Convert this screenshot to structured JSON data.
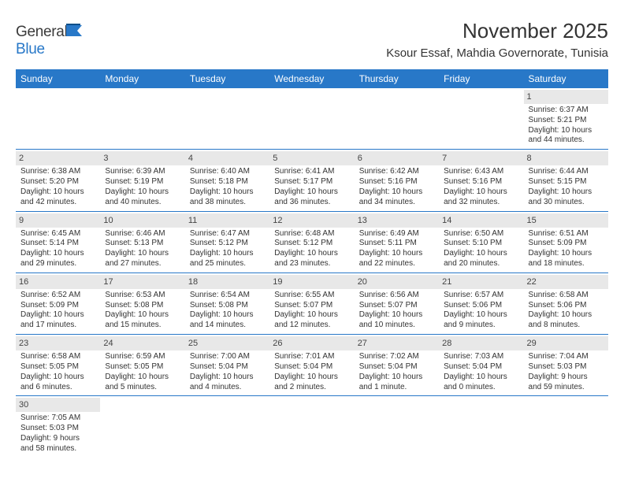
{
  "logo": {
    "part1": "General",
    "part2": "Blue"
  },
  "title": "November 2025",
  "location": "Ksour Essaf, Mahdia Governorate, Tunisia",
  "weekdays": [
    "Sunday",
    "Monday",
    "Tuesday",
    "Wednesday",
    "Thursday",
    "Friday",
    "Saturday"
  ],
  "header_bg": "#2878c8",
  "header_fg": "#ffffff",
  "daynum_bg": "#e8e8e8",
  "divider_color": "#2878c8",
  "logo_accent": "#2878c8",
  "cells": [
    [
      {
        "n": "",
        "l": [
          "",
          "",
          "",
          ""
        ],
        "empty": true
      },
      {
        "n": "",
        "l": [
          "",
          "",
          "",
          ""
        ],
        "empty": true
      },
      {
        "n": "",
        "l": [
          "",
          "",
          "",
          ""
        ],
        "empty": true
      },
      {
        "n": "",
        "l": [
          "",
          "",
          "",
          ""
        ],
        "empty": true
      },
      {
        "n": "",
        "l": [
          "",
          "",
          "",
          ""
        ],
        "empty": true
      },
      {
        "n": "",
        "l": [
          "",
          "",
          "",
          ""
        ],
        "empty": true
      },
      {
        "n": "1",
        "l": [
          "Sunrise: 6:37 AM",
          "Sunset: 5:21 PM",
          "Daylight: 10 hours",
          "and 44 minutes."
        ]
      }
    ],
    [
      {
        "n": "2",
        "l": [
          "Sunrise: 6:38 AM",
          "Sunset: 5:20 PM",
          "Daylight: 10 hours",
          "and 42 minutes."
        ]
      },
      {
        "n": "3",
        "l": [
          "Sunrise: 6:39 AM",
          "Sunset: 5:19 PM",
          "Daylight: 10 hours",
          "and 40 minutes."
        ]
      },
      {
        "n": "4",
        "l": [
          "Sunrise: 6:40 AM",
          "Sunset: 5:18 PM",
          "Daylight: 10 hours",
          "and 38 minutes."
        ]
      },
      {
        "n": "5",
        "l": [
          "Sunrise: 6:41 AM",
          "Sunset: 5:17 PM",
          "Daylight: 10 hours",
          "and 36 minutes."
        ]
      },
      {
        "n": "6",
        "l": [
          "Sunrise: 6:42 AM",
          "Sunset: 5:16 PM",
          "Daylight: 10 hours",
          "and 34 minutes."
        ]
      },
      {
        "n": "7",
        "l": [
          "Sunrise: 6:43 AM",
          "Sunset: 5:16 PM",
          "Daylight: 10 hours",
          "and 32 minutes."
        ]
      },
      {
        "n": "8",
        "l": [
          "Sunrise: 6:44 AM",
          "Sunset: 5:15 PM",
          "Daylight: 10 hours",
          "and 30 minutes."
        ]
      }
    ],
    [
      {
        "n": "9",
        "l": [
          "Sunrise: 6:45 AM",
          "Sunset: 5:14 PM",
          "Daylight: 10 hours",
          "and 29 minutes."
        ]
      },
      {
        "n": "10",
        "l": [
          "Sunrise: 6:46 AM",
          "Sunset: 5:13 PM",
          "Daylight: 10 hours",
          "and 27 minutes."
        ]
      },
      {
        "n": "11",
        "l": [
          "Sunrise: 6:47 AM",
          "Sunset: 5:12 PM",
          "Daylight: 10 hours",
          "and 25 minutes."
        ]
      },
      {
        "n": "12",
        "l": [
          "Sunrise: 6:48 AM",
          "Sunset: 5:12 PM",
          "Daylight: 10 hours",
          "and 23 minutes."
        ]
      },
      {
        "n": "13",
        "l": [
          "Sunrise: 6:49 AM",
          "Sunset: 5:11 PM",
          "Daylight: 10 hours",
          "and 22 minutes."
        ]
      },
      {
        "n": "14",
        "l": [
          "Sunrise: 6:50 AM",
          "Sunset: 5:10 PM",
          "Daylight: 10 hours",
          "and 20 minutes."
        ]
      },
      {
        "n": "15",
        "l": [
          "Sunrise: 6:51 AM",
          "Sunset: 5:09 PM",
          "Daylight: 10 hours",
          "and 18 minutes."
        ]
      }
    ],
    [
      {
        "n": "16",
        "l": [
          "Sunrise: 6:52 AM",
          "Sunset: 5:09 PM",
          "Daylight: 10 hours",
          "and 17 minutes."
        ]
      },
      {
        "n": "17",
        "l": [
          "Sunrise: 6:53 AM",
          "Sunset: 5:08 PM",
          "Daylight: 10 hours",
          "and 15 minutes."
        ]
      },
      {
        "n": "18",
        "l": [
          "Sunrise: 6:54 AM",
          "Sunset: 5:08 PM",
          "Daylight: 10 hours",
          "and 14 minutes."
        ]
      },
      {
        "n": "19",
        "l": [
          "Sunrise: 6:55 AM",
          "Sunset: 5:07 PM",
          "Daylight: 10 hours",
          "and 12 minutes."
        ]
      },
      {
        "n": "20",
        "l": [
          "Sunrise: 6:56 AM",
          "Sunset: 5:07 PM",
          "Daylight: 10 hours",
          "and 10 minutes."
        ]
      },
      {
        "n": "21",
        "l": [
          "Sunrise: 6:57 AM",
          "Sunset: 5:06 PM",
          "Daylight: 10 hours",
          "and 9 minutes."
        ]
      },
      {
        "n": "22",
        "l": [
          "Sunrise: 6:58 AM",
          "Sunset: 5:06 PM",
          "Daylight: 10 hours",
          "and 8 minutes."
        ]
      }
    ],
    [
      {
        "n": "23",
        "l": [
          "Sunrise: 6:58 AM",
          "Sunset: 5:05 PM",
          "Daylight: 10 hours",
          "and 6 minutes."
        ]
      },
      {
        "n": "24",
        "l": [
          "Sunrise: 6:59 AM",
          "Sunset: 5:05 PM",
          "Daylight: 10 hours",
          "and 5 minutes."
        ]
      },
      {
        "n": "25",
        "l": [
          "Sunrise: 7:00 AM",
          "Sunset: 5:04 PM",
          "Daylight: 10 hours",
          "and 4 minutes."
        ]
      },
      {
        "n": "26",
        "l": [
          "Sunrise: 7:01 AM",
          "Sunset: 5:04 PM",
          "Daylight: 10 hours",
          "and 2 minutes."
        ]
      },
      {
        "n": "27",
        "l": [
          "Sunrise: 7:02 AM",
          "Sunset: 5:04 PM",
          "Daylight: 10 hours",
          "and 1 minute."
        ]
      },
      {
        "n": "28",
        "l": [
          "Sunrise: 7:03 AM",
          "Sunset: 5:04 PM",
          "Daylight: 10 hours",
          "and 0 minutes."
        ]
      },
      {
        "n": "29",
        "l": [
          "Sunrise: 7:04 AM",
          "Sunset: 5:03 PM",
          "Daylight: 9 hours",
          "and 59 minutes."
        ]
      }
    ],
    [
      {
        "n": "30",
        "l": [
          "Sunrise: 7:05 AM",
          "Sunset: 5:03 PM",
          "Daylight: 9 hours",
          "and 58 minutes."
        ]
      },
      {
        "n": "",
        "l": [
          "",
          "",
          "",
          ""
        ],
        "empty": true
      },
      {
        "n": "",
        "l": [
          "",
          "",
          "",
          ""
        ],
        "empty": true
      },
      {
        "n": "",
        "l": [
          "",
          "",
          "",
          ""
        ],
        "empty": true
      },
      {
        "n": "",
        "l": [
          "",
          "",
          "",
          ""
        ],
        "empty": true
      },
      {
        "n": "",
        "l": [
          "",
          "",
          "",
          ""
        ],
        "empty": true
      },
      {
        "n": "",
        "l": [
          "",
          "",
          "",
          ""
        ],
        "empty": true
      }
    ]
  ]
}
